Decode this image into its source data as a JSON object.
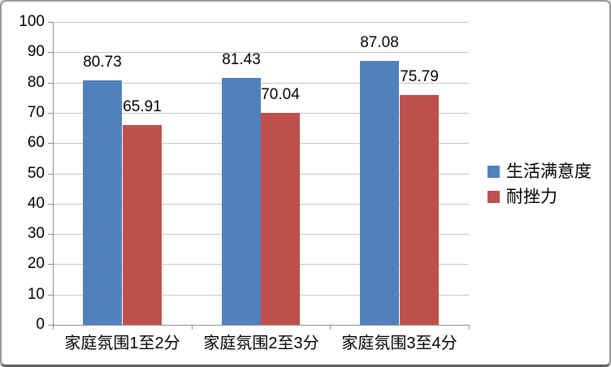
{
  "chart_data": {
    "type": "bar",
    "title": "",
    "xlabel": "",
    "ylabel": "",
    "categories": [
      "家庭氛围1至2分",
      "家庭氛围2至3分",
      "家庭氛围3至4分"
    ],
    "series": [
      {
        "key": "life-satisfaction",
        "name": "生活满意度",
        "color": "#4F81BD",
        "values": [
          80.73,
          81.43,
          87.08
        ],
        "labels": [
          "80.73",
          "81.43",
          "87.08"
        ]
      },
      {
        "key": "resilience",
        "name": "耐挫力",
        "color": "#C0504D",
        "values": [
          65.91,
          70.04,
          75.79
        ],
        "labels": [
          "65.91",
          "70.04",
          "75.79"
        ]
      }
    ],
    "ylim": [
      0,
      100
    ],
    "yticks": [
      0,
      10,
      20,
      30,
      40,
      50,
      60,
      70,
      80,
      90,
      100
    ],
    "grid": true,
    "data_labels": true,
    "legend_position": "right"
  },
  "colors": {
    "background": "#FFFFFF",
    "border": "#979797",
    "gridline": "#C6C6C6",
    "axis": "#8E8E8E",
    "text": "#000000"
  }
}
